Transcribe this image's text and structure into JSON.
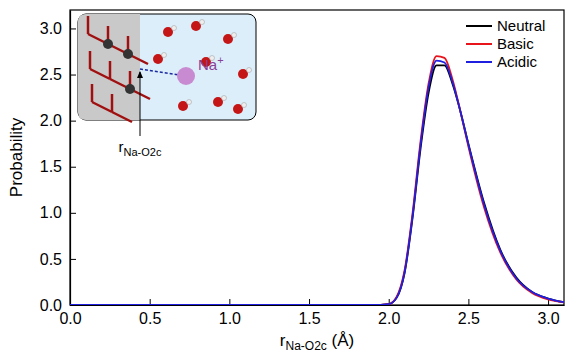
{
  "chart_data": {
    "type": "line",
    "x_label": [
      "r",
      "Na-O2c",
      " (Å)"
    ],
    "y_label": "Probability",
    "x": [
      0,
      0.5,
      1.0,
      1.5,
      1.9,
      2.0,
      2.05,
      2.1,
      2.15,
      2.2,
      2.25,
      2.3,
      2.35,
      2.4,
      2.45,
      2.5,
      2.6,
      2.7,
      2.8,
      2.9,
      3.0,
      3.1
    ],
    "series": [
      {
        "name": "Neutral",
        "color": "#000000",
        "values": [
          0,
          0,
          0,
          0,
          0,
          0.01,
          0.08,
          0.35,
          0.95,
          1.7,
          2.3,
          2.6,
          2.6,
          2.4,
          2.1,
          1.75,
          1.1,
          0.6,
          0.3,
          0.14,
          0.07,
          0.03
        ]
      },
      {
        "name": "Basic",
        "color": "#e8141c",
        "values": [
          0,
          0,
          0,
          0,
          0,
          0.01,
          0.09,
          0.38,
          1.0,
          1.78,
          2.4,
          2.7,
          2.68,
          2.45,
          2.1,
          1.72,
          1.05,
          0.57,
          0.28,
          0.13,
          0.06,
          0.03
        ]
      },
      {
        "name": "Acidic",
        "color": "#1f1fe0",
        "values": [
          0,
          0,
          0,
          0,
          0,
          0.01,
          0.08,
          0.36,
          0.97,
          1.74,
          2.36,
          2.65,
          2.63,
          2.42,
          2.1,
          1.74,
          1.08,
          0.59,
          0.29,
          0.14,
          0.07,
          0.03
        ]
      }
    ],
    "xlim": [
      0,
      3.1
    ],
    "ylim": [
      0,
      3.2
    ],
    "xticks": [
      {
        "value": 0,
        "label": "0.0"
      },
      {
        "value": 0.5,
        "label": "0.5"
      },
      {
        "value": 1,
        "label": "1.0"
      },
      {
        "value": 1.5,
        "label": "1.5"
      },
      {
        "value": 2,
        "label": "2.0"
      },
      {
        "value": 2.5,
        "label": "2.5"
      },
      {
        "value": 3,
        "label": "3.0"
      }
    ],
    "yticks": [
      {
        "value": 0,
        "label": "0.0"
      },
      {
        "value": 0.5,
        "label": "0.5"
      },
      {
        "value": 1,
        "label": "1.0"
      },
      {
        "value": 1.5,
        "label": "1.5"
      },
      {
        "value": 2,
        "label": "2.0"
      },
      {
        "value": 2.5,
        "label": "2.5"
      },
      {
        "value": 3,
        "label": "3.0"
      }
    ],
    "legend": "upper right",
    "annotations": [
      {
        "text": [
          "Na",
          "+"
        ]
      },
      {
        "text": [
          "r",
          "Na-O2c"
        ]
      }
    ]
  }
}
